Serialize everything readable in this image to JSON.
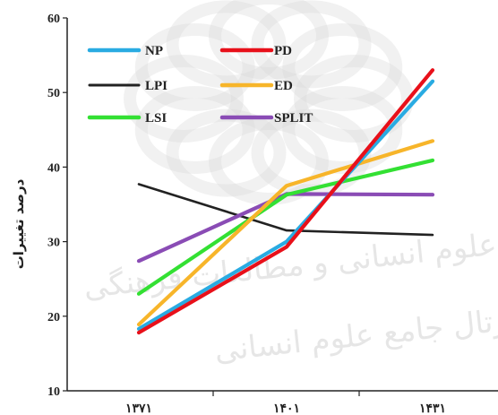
{
  "chart_data": {
    "type": "line",
    "title": "",
    "xlabel": "",
    "ylabel": "درصد تغییرات",
    "ylim": [
      10,
      60
    ],
    "yticks": [
      10,
      20,
      30,
      40,
      50,
      60
    ],
    "categories": [
      "۱۳۷۱",
      "۱۴۰۱",
      "۱۴۳۱"
    ],
    "grid": false,
    "legend_position": "top-left",
    "series": [
      {
        "name": "NP",
        "color": "#29abe2",
        "values": [
          18.3,
          30.0,
          51.5
        ]
      },
      {
        "name": "PD",
        "color": "#e8101a",
        "values": [
          17.8,
          29.3,
          53.0
        ]
      },
      {
        "name": "LPI",
        "color": "#222222",
        "values": [
          37.7,
          31.5,
          30.9
        ]
      },
      {
        "name": "ED",
        "color": "#f7b52a",
        "values": [
          18.9,
          37.5,
          43.5
        ]
      },
      {
        "name": "LSI",
        "color": "#33e033",
        "values": [
          23.0,
          36.3,
          40.9
        ]
      },
      {
        "name": "SPLIT",
        "color": "#8a4cb5",
        "values": [
          27.4,
          36.4,
          36.3
        ]
      }
    ],
    "watermark_lines": [
      "پژوهشگاه علوم انسانی و مطالعات فرهنگی",
      "پرتال جامع علوم انسانی"
    ]
  }
}
